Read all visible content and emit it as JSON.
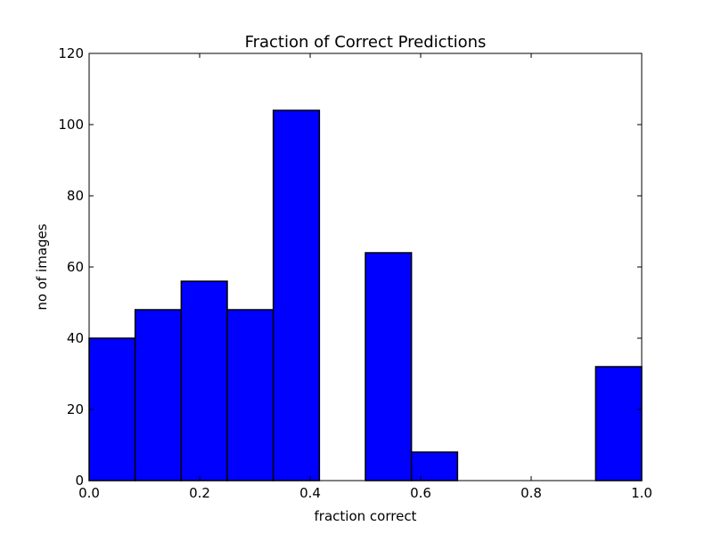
{
  "chart_data": {
    "type": "bar",
    "title": "Fraction of Correct Predictions",
    "xlabel": "fraction correct",
    "ylabel": "no of images",
    "xlim": [
      0.0,
      1.0
    ],
    "ylim": [
      0,
      120
    ],
    "x_ticks": [
      "0.0",
      "0.2",
      "0.4",
      "0.6",
      "0.8",
      "1.0"
    ],
    "y_ticks": [
      "0",
      "20",
      "40",
      "60",
      "80",
      "100",
      "120"
    ],
    "bin_edges": [
      0.0,
      0.0833,
      0.1667,
      0.25,
      0.3333,
      0.4167,
      0.5,
      0.5833,
      0.6667,
      0.75,
      0.8333,
      0.9167,
      1.0
    ],
    "values": [
      40,
      48,
      56,
      48,
      104,
      0,
      64,
      8,
      0,
      0,
      0,
      32
    ],
    "bar_color": "#0000ff",
    "edge_color": "#000000",
    "grid": false
  }
}
